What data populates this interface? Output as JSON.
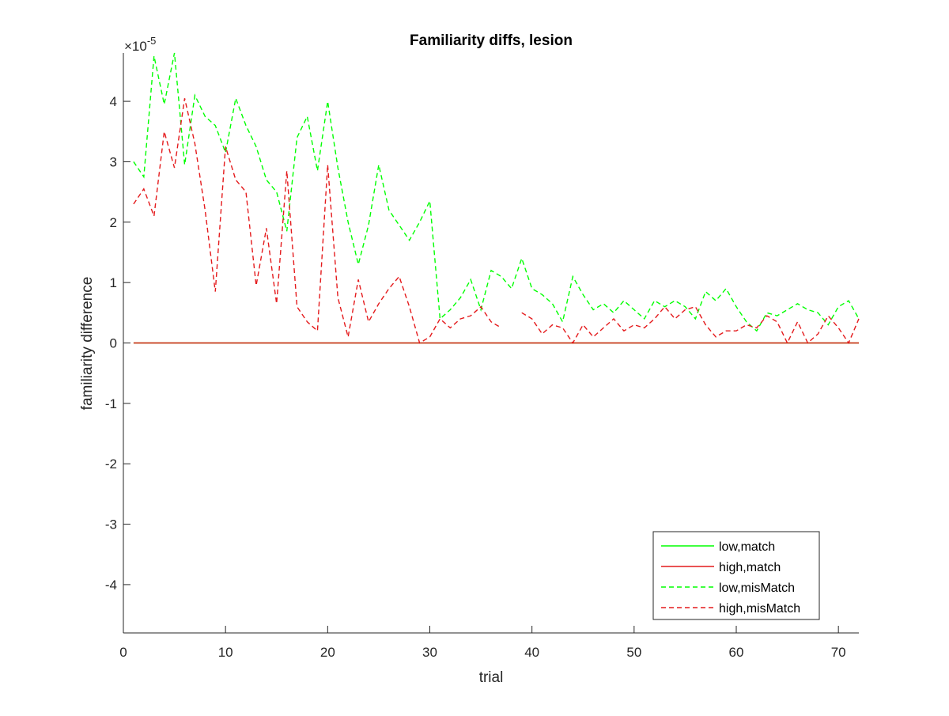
{
  "chart_data": {
    "type": "line",
    "title": "Familiarity diffs, lesion",
    "xlabel": "trial",
    "ylabel": "familiarity difference",
    "y_exponent_label": "×10",
    "y_exponent_power": "-5",
    "xlim": [
      0,
      72
    ],
    "ylim": [
      -4.8,
      4.8
    ],
    "x_ticks": [
      0,
      10,
      20,
      30,
      40,
      50,
      60,
      70
    ],
    "y_ticks": [
      -4,
      -3,
      -2,
      -1,
      0,
      1,
      2,
      3,
      4
    ],
    "grid": false,
    "legend_position": "bottom-right",
    "series": [
      {
        "name": "low,match",
        "color": "#00ff00",
        "style": "solid",
        "x": [
          1,
          72
        ],
        "y": [
          0,
          0
        ]
      },
      {
        "name": "high,match",
        "color": "#e41a1c",
        "style": "solid",
        "x": [
          1,
          72
        ],
        "y": [
          0,
          0
        ]
      },
      {
        "name": "low,misMatch",
        "color": "#00ff00",
        "style": "dashed",
        "x": [
          1,
          2,
          3,
          4,
          5,
          6,
          7,
          8,
          9,
          10,
          11,
          12,
          13,
          14,
          15,
          16,
          17,
          18,
          19,
          20,
          21,
          22,
          23,
          24,
          25,
          26,
          27,
          28,
          29,
          30,
          31,
          32,
          33,
          34,
          35,
          36,
          37,
          38,
          39,
          40,
          41,
          42,
          43,
          44,
          45,
          46,
          47,
          48,
          49,
          50,
          51,
          52,
          53,
          54,
          55,
          56,
          57,
          58,
          59,
          60,
          61,
          62,
          63,
          64,
          65,
          66,
          67,
          68,
          69,
          70,
          71,
          72
        ],
        "y": [
          3.0,
          2.75,
          4.75,
          3.95,
          4.8,
          2.95,
          4.1,
          3.75,
          3.6,
          3.15,
          4.05,
          3.6,
          3.25,
          2.7,
          2.5,
          1.85,
          3.4,
          3.75,
          2.85,
          4.0,
          2.9,
          2.0,
          1.3,
          1.95,
          2.95,
          2.2,
          1.95,
          1.7,
          2.0,
          2.35,
          0.4,
          0.55,
          0.75,
          1.05,
          0.55,
          1.2,
          1.1,
          0.9,
          1.4,
          0.9,
          0.8,
          0.65,
          0.35,
          1.1,
          0.8,
          0.55,
          0.65,
          0.5,
          0.7,
          0.55,
          0.4,
          0.7,
          0.6,
          0.7,
          0.6,
          0.4,
          0.85,
          0.7,
          0.9,
          0.6,
          0.35,
          0.2,
          0.5,
          0.45,
          0.55,
          0.65,
          0.55,
          0.5,
          0.3,
          0.6,
          0.7,
          0.4
        ]
      },
      {
        "name": "high,misMatch",
        "color": "#e41a1c",
        "style": "dashed",
        "x": [
          1,
          2,
          3,
          4,
          5,
          6,
          7,
          8,
          9,
          10,
          11,
          12,
          13,
          14,
          15,
          16,
          17,
          18,
          19,
          20,
          21,
          22,
          23,
          24,
          25,
          26,
          27,
          28,
          29,
          30,
          31,
          32,
          33,
          34,
          35,
          36,
          37,
          38,
          39,
          40,
          41,
          42,
          43,
          44,
          45,
          46,
          47,
          48,
          49,
          50,
          51,
          52,
          53,
          54,
          55,
          56,
          57,
          58,
          59,
          60,
          61,
          62,
          63,
          64,
          65,
          66,
          67,
          68,
          69,
          70,
          71,
          72
        ],
        "y": [
          2.3,
          2.55,
          2.1,
          3.5,
          2.9,
          4.05,
          3.3,
          2.2,
          0.85,
          3.25,
          2.7,
          2.5,
          0.95,
          1.9,
          0.65,
          2.85,
          0.6,
          0.35,
          0.2,
          2.95,
          0.75,
          0.1,
          1.05,
          0.35,
          0.65,
          0.9,
          1.1,
          0.6,
          0.0,
          0.1,
          0.4,
          0.25,
          0.4,
          0.45,
          0.6,
          0.35,
          0.25,
          null,
          0.5,
          0.4,
          0.15,
          0.3,
          0.25,
          0.0,
          0.3,
          0.1,
          0.25,
          0.4,
          0.2,
          0.3,
          0.25,
          0.4,
          0.6,
          0.4,
          0.55,
          0.6,
          0.3,
          0.1,
          0.2,
          0.2,
          0.3,
          0.25,
          0.45,
          0.35,
          0.0,
          0.35,
          0.0,
          0.15,
          0.45,
          0.25,
          0.0,
          0.4
        ]
      }
    ]
  }
}
